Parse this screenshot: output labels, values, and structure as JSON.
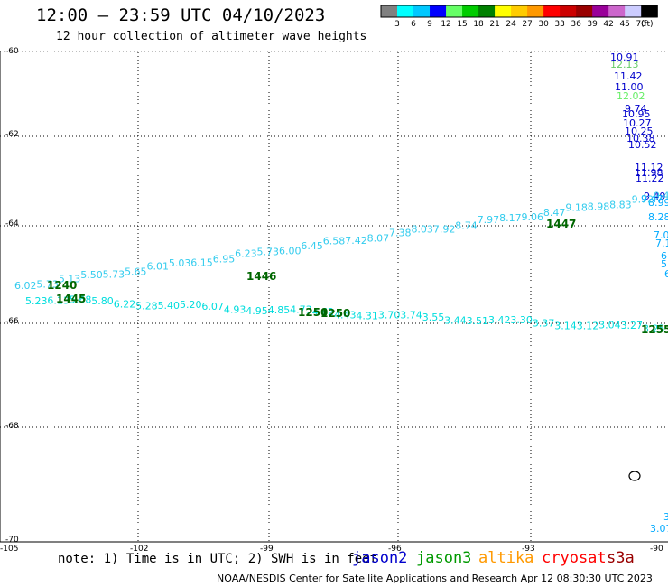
{
  "header": {
    "title": "12:00 – 23:59 UTC 04/10/2023",
    "subtitle": "12 hour collection of altimeter wave heights"
  },
  "colorbar": {
    "colors": [
      "#808080",
      "#00ffff",
      "#00c8ff",
      "#0000ff",
      "#66ff66",
      "#00cc00",
      "#008000",
      "#ffff00",
      "#ffcc00",
      "#ff9900",
      "#ff0000",
      "#cc0000",
      "#990000",
      "#990099",
      "#cc66cc",
      "#ccccff",
      "#000000"
    ],
    "labels": [
      "3",
      "6",
      "9",
      "12",
      "15",
      "18",
      "21",
      "24",
      "27",
      "30",
      "33",
      "36",
      "39",
      "42",
      "45",
      "70"
    ],
    "unit": "(ft)"
  },
  "axes": {
    "lat_labels": [
      "-60",
      "-62",
      "-64",
      "-66",
      "-68",
      "-70"
    ],
    "lon_labels": [
      "-105",
      "-102",
      "-99",
      "-96",
      "-93",
      "-90"
    ]
  },
  "tracks": {
    "descending_track": {
      "color": "#00c8ff",
      "values": [
        "10.91",
        "12.13",
        "11.42",
        "11.00",
        "12.02",
        "9.74",
        "10.95",
        "10.27",
        "10.25",
        "10.38",
        "10.52",
        "11.12",
        "11.98",
        "11.22",
        "9.49",
        "9.47",
        "8.99",
        "8.28",
        "7.0",
        "7.1",
        "6",
        "5.",
        "6"
      ]
    },
    "upper_track": {
      "color": "#33ccee",
      "values": [
        "6.02",
        "5.73",
        "5.13",
        "5.50",
        "5.73",
        "5.65",
        "6.01",
        "5.03",
        "6.15",
        "6.95",
        "6.23",
        "5.73",
        "6.00",
        "6.45",
        "6.58",
        "7.42",
        "8.07",
        "7.38",
        "8.03",
        "7.92",
        "8.74",
        "7.97",
        "8.17",
        "9.06",
        "8.47",
        "9.18",
        "8.98",
        "8.83",
        "9.72",
        "9.43"
      ]
    },
    "lower_track": {
      "color": "#00dddd",
      "values": [
        "5.23",
        "6.13",
        "5.68",
        "5.80",
        "6.22",
        "5.28",
        "5.40",
        "5.20",
        "6.07",
        "4.93",
        "4.95",
        "4.85",
        "4.73",
        "4.62",
        "4.43",
        "4.31",
        "3.70",
        "3.74",
        "3.55",
        "3.44",
        "3.51",
        "3.42",
        "3.30",
        "3.37",
        "3.14",
        "3.12",
        "3.04",
        "3.27",
        "3.25"
      ]
    },
    "time_labels": [
      {
        "text": "1445",
        "color": "#006600"
      },
      {
        "text": "1446",
        "color": "#006600"
      },
      {
        "text": "1447",
        "color": "#006600"
      },
      {
        "text": "1240",
        "color": "#006600"
      },
      {
        "text": "1250",
        "color": "#006600"
      },
      {
        "text": "1250",
        "color": "#006600"
      },
      {
        "text": "1255",
        "color": "#006600"
      }
    ],
    "small_labels": [
      "3",
      "3.07"
    ]
  },
  "footer": {
    "note": "note:  1) Time is in UTC;  2) SWH is in feet",
    "legend": [
      {
        "name": "jason2",
        "color": "#0000cc"
      },
      {
        "name": "jason3",
        "color": "#009900"
      },
      {
        "name": "altika",
        "color": "#ff9900"
      },
      {
        "name": "cryosat",
        "color": "#ff0000"
      },
      {
        "name": "s3a",
        "color": "#990000"
      }
    ],
    "credit": "NOAA/NESDIS Center for Satellite Applications and Research    Apr 12 08:30:30 UTC 2023"
  }
}
